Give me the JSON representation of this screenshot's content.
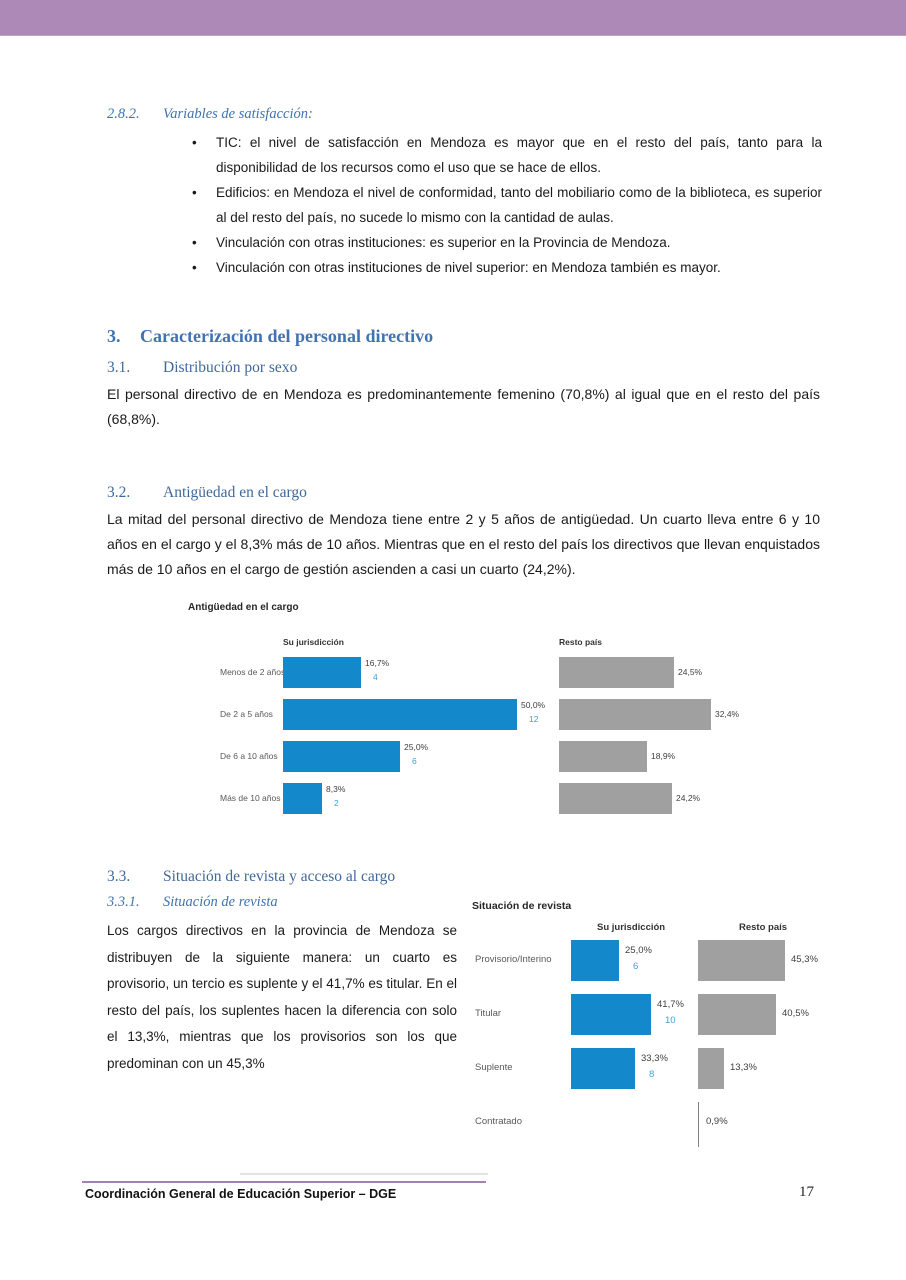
{
  "colors": {
    "top_bar": "#AC89B6",
    "heading_blue": "#4173B2",
    "bar_blue": "#1389CB",
    "bar_gray": "#A0A0A0",
    "count_blue": "#3FA0D9",
    "footer_divider": "#A381B3"
  },
  "sections": {
    "s282": {
      "number": "2.8.2.",
      "title": "Variables de satisfacción:",
      "bullet_char": "•",
      "bullets": [
        "TIC: el nivel de satisfacción en Mendoza es mayor que en el resto del país, tanto para la disponibilidad de los recursos como el uso que se hace de ellos.",
        "Edificios: en Mendoza el nivel de conformidad, tanto del mobiliario como de la biblioteca, es superior al del resto del país, no sucede lo mismo con la cantidad de aulas.",
        "Vinculación con otras instituciones: es superior en la Provincia de Mendoza.",
        "Vinculación con otras instituciones de nivel superior: en Mendoza también es mayor."
      ]
    },
    "s3": {
      "number": "3.",
      "title": "Caracterización del personal directivo"
    },
    "s31": {
      "number": "3.1.",
      "title": "Distribución por sexo",
      "body": "El personal directivo de en Mendoza es predominantemente femenino (70,8%) al igual que en el resto del país (68,8%)."
    },
    "s32": {
      "number": "3.2.",
      "title": "Antigüedad en el cargo",
      "body": "La mitad del personal directivo de Mendoza tiene entre 2 y 5 años de antigüedad. Un cuarto lleva entre 6 y 10 años en el cargo y el 8,3% más de 10 años. Mientras que en el resto del país los directivos que llevan enquistados más de 10 años en el cargo de gestión ascienden a casi un cuarto (24,2%)."
    },
    "s33": {
      "number": "3.3.",
      "title": "Situación de revista y acceso al cargo"
    },
    "s331": {
      "number": "3.3.1.",
      "title": "Situación de revista",
      "body": "Los cargos directivos en la provincia de Mendoza se distribuyen de la siguiente manera: un cuarto es provisorio, un tercio es suplente y el 41,7% es titular. En el resto del país, los suplentes hacen la diferencia con solo el 13,3%, mientras que los provisorios son los que predominan con un 45,3%"
    }
  },
  "chart_data": [
    {
      "type": "bar",
      "orientation": "horizontal",
      "title": "Antigüedad en el cargo",
      "categories": [
        "Menos de 2 años",
        "De 2 a 5 años",
        "De 6 a 10 años",
        "Más de 10 años"
      ],
      "count_color": "#3FA0D9",
      "series": [
        {
          "name": "Su jurisdicción",
          "color": "#1389CB",
          "values": [
            16.7,
            50.0,
            25.0,
            8.3
          ],
          "labels": [
            "16,7%",
            "50,0%",
            "25,0%",
            "8,3%"
          ],
          "counts": [
            "4",
            "12",
            "6",
            "2"
          ]
        },
        {
          "name": "Resto país",
          "color": "#A0A0A0",
          "values": [
            24.5,
            32.4,
            18.9,
            24.2
          ],
          "labels": [
            "24,5%",
            "32,4%",
            "18,9%",
            "24,2%"
          ]
        }
      ]
    },
    {
      "type": "bar",
      "orientation": "horizontal",
      "title": "Situación de revista",
      "categories": [
        "Provisorio/Interino",
        "Titular",
        "Suplente",
        "Contratado"
      ],
      "count_color": "#3FA0D9",
      "series": [
        {
          "name": "Su jurisdicción",
          "color": "#1389CB",
          "values": [
            25.0,
            41.7,
            33.3,
            null
          ],
          "labels": [
            "25,0%",
            "41,7%",
            "33,3%",
            null
          ],
          "counts": [
            "6",
            "10",
            "8",
            null
          ]
        },
        {
          "name": "Resto país",
          "color": "#A0A0A0",
          "values": [
            45.3,
            40.5,
            13.3,
            0.9
          ],
          "labels": [
            "45,3%",
            "40,5%",
            "13,3%",
            "0,9%"
          ]
        }
      ]
    }
  ],
  "footer": {
    "text": "Coordinación General de Educación Superior – DGE",
    "page_number": "17"
  }
}
